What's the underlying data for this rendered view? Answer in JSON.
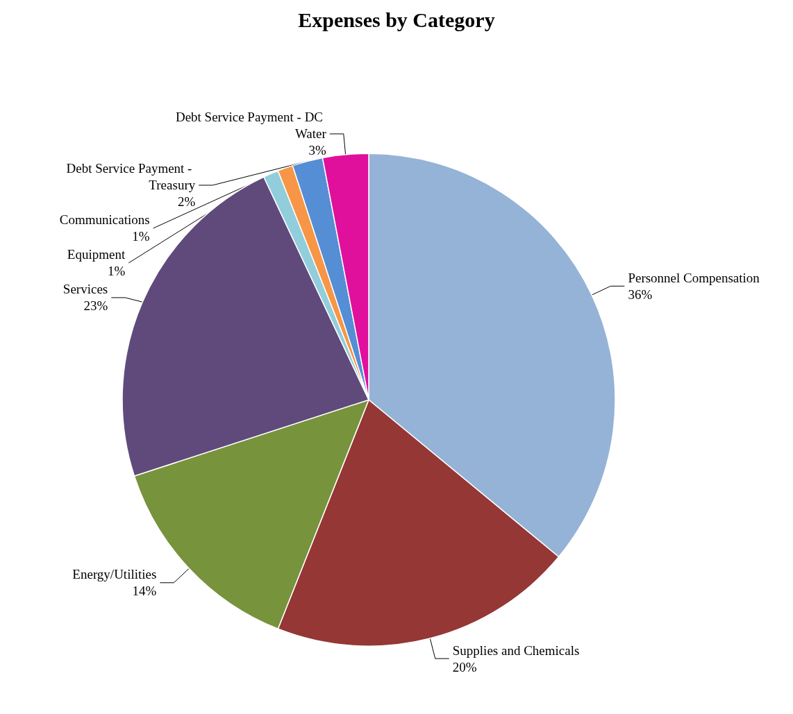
{
  "chart_data": {
    "type": "pie",
    "title": "Expenses by Category",
    "categories": [
      "Personnel Compensation",
      "Supplies and Chemicals",
      "Energy/Utilities",
      "Services",
      "Equipment",
      "Communications",
      "Debt Service Payment - Treasury",
      "Debt Service Payment - DC Water"
    ],
    "values": [
      36,
      20,
      14,
      23,
      1,
      1,
      2,
      3
    ],
    "colors": [
      "#95b3d7",
      "#953735",
      "#77933c",
      "#604a7b",
      "#92cddc",
      "#f79646",
      "#558ed5",
      "#e0109c"
    ],
    "value_labels": [
      "36%",
      "20%",
      "14%",
      "23%",
      "1%",
      "1%",
      "2%",
      "3%"
    ],
    "legend": false
  }
}
